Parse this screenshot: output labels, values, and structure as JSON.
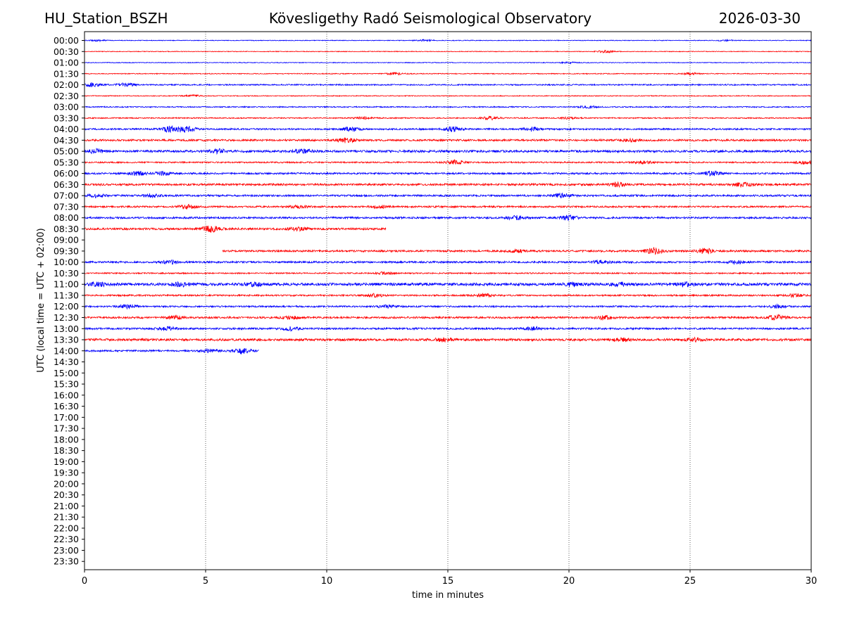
{
  "header": {
    "station": "HU_Station_BSZH",
    "title": "Kövesligethy Radó Seismological Observatory",
    "date": "2026-03-30"
  },
  "chart_data": {
    "type": "line",
    "title": "Kövesligethy Radó Seismological Observatory",
    "xlabel": "time in minutes",
    "ylabel": "UTC (local time = UTC + 02:00)",
    "xlim": [
      0,
      30
    ],
    "x_ticks": [
      "0",
      "5",
      "10",
      "15",
      "20",
      "25",
      "30"
    ],
    "x_gridlines": [
      5,
      10,
      15,
      20,
      25
    ],
    "y_ticks": [
      "00:00",
      "00:30",
      "01:00",
      "01:30",
      "02:00",
      "02:30",
      "03:00",
      "03:30",
      "04:00",
      "04:30",
      "05:00",
      "05:30",
      "06:00",
      "06:30",
      "07:00",
      "07:30",
      "08:00",
      "08:30",
      "09:00",
      "09:30",
      "10:00",
      "10:30",
      "11:00",
      "11:30",
      "12:00",
      "12:30",
      "13:00",
      "13:30",
      "14:00",
      "14:30",
      "15:00",
      "15:30",
      "16:00",
      "16:30",
      "17:00",
      "17:30",
      "18:00",
      "18:30",
      "19:00",
      "19:30",
      "20:00",
      "20:30",
      "21:00",
      "21:30",
      "22:00",
      "22:30",
      "23:00",
      "23:30"
    ],
    "trace_colors": [
      "#0000ff",
      "#ff0000"
    ],
    "traces": [
      {
        "row": "00:00",
        "start": 0,
        "end": 30,
        "amp": 0.5,
        "bursts": [
          [
            0.6,
            0.8
          ],
          [
            14.0,
            1.0
          ],
          [
            26.5,
            0.8
          ]
        ]
      },
      {
        "row": "00:30",
        "start": 0,
        "end": 30,
        "amp": 0.5,
        "bursts": [
          [
            21.5,
            1.5
          ]
        ]
      },
      {
        "row": "01:00",
        "start": 0,
        "end": 30,
        "amp": 0.5,
        "bursts": [
          [
            20.0,
            0.8
          ]
        ]
      },
      {
        "row": "01:30",
        "start": 0,
        "end": 30,
        "amp": 0.6,
        "bursts": [
          [
            12.8,
            1.5
          ],
          [
            25.0,
            1.3
          ]
        ]
      },
      {
        "row": "02:00",
        "start": 0,
        "end": 30,
        "amp": 0.9,
        "bursts": [
          [
            0.3,
            2.5
          ],
          [
            1.7,
            2.5
          ]
        ]
      },
      {
        "row": "02:30",
        "start": 0,
        "end": 30,
        "amp": 0.6,
        "bursts": [
          [
            4.5,
            1.2
          ]
        ]
      },
      {
        "row": "03:00",
        "start": 0,
        "end": 30,
        "amp": 0.8,
        "bursts": [
          [
            20.8,
            1.5
          ]
        ]
      },
      {
        "row": "03:30",
        "start": 0,
        "end": 30,
        "amp": 0.8,
        "bursts": [
          [
            11.5,
            1.3
          ],
          [
            16.8,
            2.2
          ],
          [
            20.0,
            1.2
          ]
        ]
      },
      {
        "row": "04:00",
        "start": 0,
        "end": 30,
        "amp": 1.1,
        "bursts": [
          [
            3.5,
            3.5
          ],
          [
            4.2,
            4.0
          ],
          [
            11.0,
            3.0
          ],
          [
            15.2,
            3.0
          ],
          [
            18.5,
            2.5
          ]
        ]
      },
      {
        "row": "04:30",
        "start": 0,
        "end": 30,
        "amp": 1.3,
        "bursts": [
          [
            10.8,
            3.0
          ],
          [
            22.5,
            2.0
          ]
        ]
      },
      {
        "row": "05:00",
        "start": 0,
        "end": 30,
        "amp": 1.6,
        "bursts": [
          [
            0.5,
            2.5
          ],
          [
            5.5,
            2.5
          ],
          [
            9.0,
            2.5
          ]
        ]
      },
      {
        "row": "05:30",
        "start": 0,
        "end": 30,
        "amp": 1.0,
        "bursts": [
          [
            15.3,
            3.0
          ],
          [
            23.1,
            2.0
          ],
          [
            29.7,
            2.2
          ]
        ]
      },
      {
        "row": "06:00",
        "start": 0,
        "end": 30,
        "amp": 1.2,
        "bursts": [
          [
            2.2,
            2.5
          ],
          [
            3.2,
            2.2
          ],
          [
            25.9,
            3.0
          ]
        ]
      },
      {
        "row": "06:30",
        "start": 0,
        "end": 30,
        "amp": 1.4,
        "bursts": [
          [
            22.0,
            2.5
          ],
          [
            27.2,
            3.0
          ]
        ]
      },
      {
        "row": "07:00",
        "start": 0,
        "end": 30,
        "amp": 1.3,
        "bursts": [
          [
            0.5,
            2.0
          ],
          [
            2.8,
            2.0
          ],
          [
            19.7,
            3.0
          ]
        ]
      },
      {
        "row": "07:30",
        "start": 0,
        "end": 30,
        "amp": 1.2,
        "bursts": [
          [
            4.3,
            2.5
          ],
          [
            8.8,
            2.0
          ],
          [
            12.2,
            2.0
          ]
        ]
      },
      {
        "row": "08:00",
        "start": 0,
        "end": 30,
        "amp": 1.3,
        "bursts": [
          [
            17.8,
            2.5
          ],
          [
            20.0,
            3.0
          ]
        ]
      },
      {
        "row": "08:30",
        "start": 0,
        "end": 12.45,
        "amp": 1.4,
        "bursts": [
          [
            5.2,
            4.0
          ],
          [
            8.8,
            2.0
          ]
        ]
      },
      {
        "row": "09:30",
        "start": 5.7,
        "end": 30,
        "amp": 1.3,
        "bursts": [
          [
            17.8,
            2.0
          ],
          [
            23.5,
            4.0
          ],
          [
            25.6,
            3.5
          ]
        ]
      },
      {
        "row": "10:00",
        "start": 0,
        "end": 30,
        "amp": 1.3,
        "bursts": [
          [
            3.5,
            2.0
          ],
          [
            21.3,
            2.0
          ],
          [
            26.9,
            2.0
          ]
        ]
      },
      {
        "row": "10:30",
        "start": 0,
        "end": 30,
        "amp": 0.9,
        "bursts": [
          [
            12.4,
            1.5
          ]
        ]
      },
      {
        "row": "11:00",
        "start": 0,
        "end": 30,
        "amp": 1.9,
        "bursts": [
          [
            0.6,
            2.2
          ],
          [
            4.0,
            2.2
          ],
          [
            7.0,
            1.8
          ],
          [
            20.1,
            2.5
          ],
          [
            22.1,
            2.0
          ],
          [
            24.8,
            2.0
          ]
        ]
      },
      {
        "row": "11:30",
        "start": 0,
        "end": 30,
        "amp": 1.1,
        "bursts": [
          [
            12.0,
            2.0
          ],
          [
            16.5,
            2.0
          ],
          [
            29.3,
            1.8
          ]
        ]
      },
      {
        "row": "12:00",
        "start": 0,
        "end": 30,
        "amp": 1.1,
        "bursts": [
          [
            1.8,
            2.5
          ],
          [
            12.5,
            2.0
          ],
          [
            28.6,
            2.0
          ]
        ]
      },
      {
        "row": "12:30",
        "start": 0,
        "end": 30,
        "amp": 1.3,
        "bursts": [
          [
            3.7,
            2.2
          ],
          [
            8.5,
            2.0
          ],
          [
            21.5,
            2.5
          ],
          [
            28.6,
            3.5
          ]
        ]
      },
      {
        "row": "13:00",
        "start": 0,
        "end": 30,
        "amp": 1.3,
        "bursts": [
          [
            3.4,
            2.5
          ],
          [
            8.5,
            2.0
          ],
          [
            18.5,
            2.0
          ]
        ]
      },
      {
        "row": "13:30",
        "start": 0,
        "end": 30,
        "amp": 1.6,
        "bursts": [
          [
            14.8,
            2.2
          ],
          [
            22.2,
            2.0
          ],
          [
            25.2,
            2.0
          ]
        ]
      },
      {
        "row": "14:00",
        "start": 0,
        "end": 7.2,
        "amp": 1.2,
        "bursts": [
          [
            5.2,
            2.0
          ],
          [
            6.5,
            3.5
          ]
        ]
      }
    ]
  }
}
